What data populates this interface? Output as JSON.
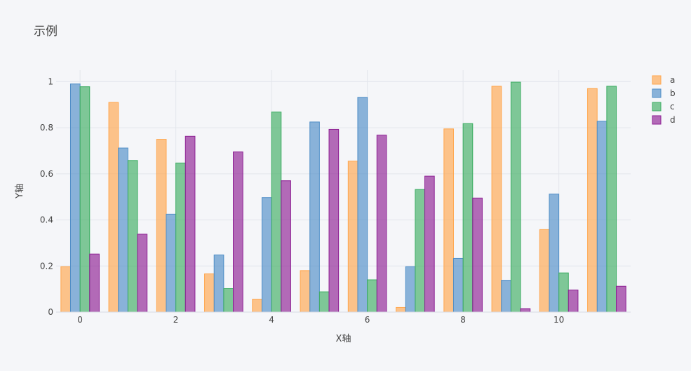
{
  "chart_data": {
    "type": "bar",
    "title": "示例",
    "xlabel": "X轴",
    "ylabel": "Y轴",
    "x": [
      0,
      1,
      2,
      3,
      4,
      5,
      6,
      7,
      8,
      9,
      10,
      11
    ],
    "x_tick_labels": [
      "0",
      "2",
      "4",
      "6",
      "8",
      "10"
    ],
    "x_tick_values": [
      0,
      2,
      4,
      6,
      8,
      10
    ],
    "ylim": [
      0,
      1.05
    ],
    "y_tick_values": [
      0,
      0.2,
      0.4,
      0.6,
      0.8,
      1
    ],
    "y_tick_labels": [
      "0",
      "0.2",
      "0.4",
      "0.6",
      "0.8",
      "1"
    ],
    "grid": true,
    "legend_position": "top-right",
    "series": [
      {
        "name": "a",
        "color": "#ffa64d",
        "values": [
          0.197,
          0.91,
          0.75,
          0.166,
          0.056,
          0.18,
          0.655,
          0.02,
          0.795,
          0.98,
          0.358,
          0.97
        ]
      },
      {
        "name": "b",
        "color": "#4f8ec7",
        "values": [
          0.99,
          0.712,
          0.425,
          0.248,
          0.497,
          0.825,
          0.932,
          0.197,
          0.233,
          0.138,
          0.512,
          0.828
        ]
      },
      {
        "name": "c",
        "color": "#3dad63",
        "values": [
          0.978,
          0.658,
          0.647,
          0.102,
          0.868,
          0.088,
          0.14,
          0.532,
          0.818,
          0.998,
          0.17,
          0.98
        ]
      },
      {
        "name": "d",
        "color": "#8d1f93",
        "values": [
          0.252,
          0.338,
          0.763,
          0.695,
          0.57,
          0.793,
          0.768,
          0.59,
          0.495,
          0.015,
          0.096,
          0.112
        ]
      }
    ]
  }
}
